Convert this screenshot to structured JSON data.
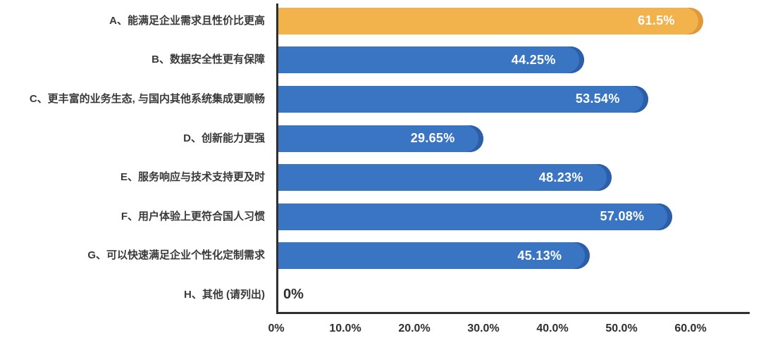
{
  "chart_data": {
    "type": "bar",
    "orientation": "horizontal",
    "title": "",
    "xlabel": "",
    "ylabel": "",
    "grid": false,
    "legend": null,
    "xlim": [
      0,
      60
    ],
    "categories": [
      "A、能满足企业需求且性价比更高",
      "B、数据安全性更有保障",
      "C、更丰富的业务生态, 与国内其他系统集成更顺畅",
      "D、创新能力更强",
      "E、服务响应与技术支持更及时",
      "F、用户体验上更符合国人习惯",
      "G、可以快速满足企业个性化定制需求",
      "H、其他 (请列出)"
    ],
    "values": [
      61.5,
      44.25,
      53.54,
      29.65,
      48.23,
      57.08,
      45.13,
      0
    ],
    "value_labels": [
      "61.5%",
      "44.25%",
      "53.54%",
      "29.65%",
      "48.23%",
      "57.08%",
      "45.13%",
      "0%"
    ],
    "highlight_index": 0,
    "x_ticks": [
      "0%",
      "10.0%",
      "20.0%",
      "30.0%",
      "40.0%",
      "50.0%",
      "60.0%"
    ],
    "x_tick_values": [
      0,
      10,
      20,
      30,
      40,
      50,
      60
    ],
    "colors": {
      "bar": "#3A75C4",
      "bar_cap": "#2D5FA9",
      "highlight_bar": "#F2B24C",
      "highlight_bar_cap": "#E1973C",
      "axis": "#2F2F2F",
      "category_text": "#3A3A3A",
      "value_text": "#FFFFFF"
    }
  }
}
